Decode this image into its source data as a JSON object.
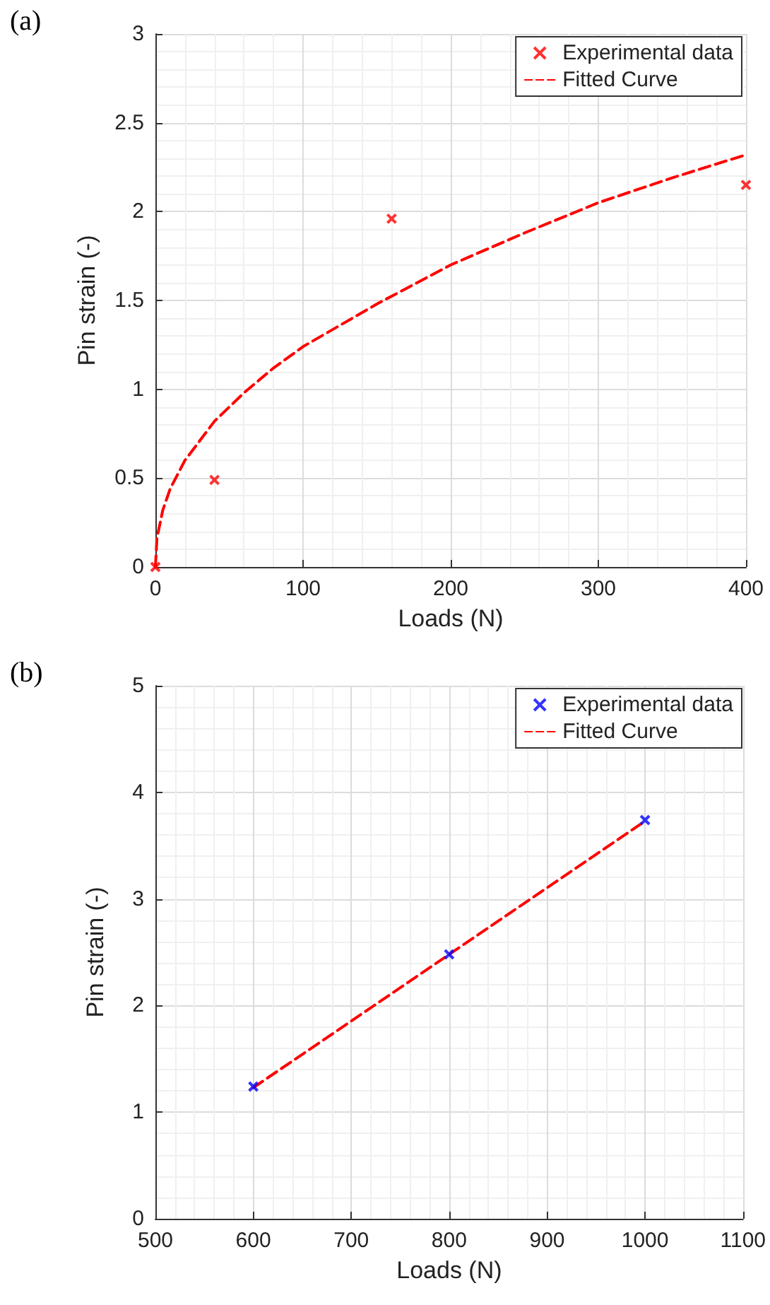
{
  "chart_data": [
    {
      "type": "scatter",
      "title": "(a)",
      "xlabel": "Loads (N)",
      "ylabel": "Pin strain (-)",
      "xlim": [
        0,
        400
      ],
      "xticks": [
        0,
        100,
        200,
        300,
        400
      ],
      "ylim": [
        0,
        3
      ],
      "yticks": [
        0,
        0.5,
        1,
        1.5,
        2,
        2.5,
        3
      ],
      "grid": true,
      "legend": "top right",
      "series": [
        {
          "name": "Experimental data",
          "marker": "cross",
          "color": "#ff0000",
          "x": [
            0,
            40,
            160,
            400
          ],
          "values": [
            0,
            0.49,
            1.96,
            2.15
          ]
        },
        {
          "name": "Fitted Curve",
          "type": "line",
          "line_style": "dashed",
          "marker": "none",
          "color": "#ff0000",
          "x": [
            0,
            1,
            5,
            10,
            20,
            40,
            60,
            80,
            100,
            150,
            200,
            250,
            300,
            350,
            400
          ],
          "values": [
            0,
            0.16,
            0.32,
            0.44,
            0.6,
            0.82,
            0.98,
            1.12,
            1.24,
            1.48,
            1.7,
            1.88,
            2.05,
            2.19,
            2.32
          ]
        }
      ]
    },
    {
      "type": "scatter",
      "title": "(b)",
      "xlabel": "Loads (N)",
      "ylabel": "Pin strain (-)",
      "xlim": [
        500,
        1100
      ],
      "xticks": [
        500,
        600,
        700,
        800,
        900,
        1000,
        1100
      ],
      "ylim": [
        0,
        5
      ],
      "yticks": [
        0,
        1,
        2,
        3,
        4,
        5
      ],
      "grid": true,
      "legend": "top right",
      "series": [
        {
          "name": "Experimental data",
          "marker": "cross",
          "color": "#0000ff",
          "x": [
            600,
            800,
            1000
          ],
          "values": [
            1.24,
            2.48,
            3.74
          ]
        },
        {
          "name": "Fitted Curve",
          "type": "line",
          "line_style": "dashed",
          "marker": "none",
          "color": "#ff0000",
          "x": [
            600,
            1000
          ],
          "values": [
            1.23,
            3.73
          ]
        }
      ]
    }
  ]
}
